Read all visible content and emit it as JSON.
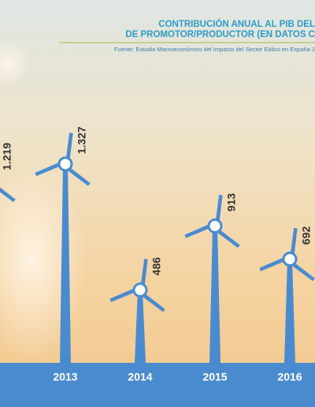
{
  "chart_data": {
    "type": "turbine",
    "title": [
      "CONTRIBUCIÓN ANUAL AL PIB DEL",
      "DE PROMOTOR/PRODUCTOR (EN DATOS C"
    ],
    "subtitle": "Fuente: Estudio Macroeconómico del Impacto del Sector Eólico en España 2",
    "categories": [
      null,
      "2013",
      "2014",
      "2015",
      "2016"
    ],
    "values": [
      1219,
      1327,
      486,
      913,
      692
    ],
    "value_labels": [
      "1.219",
      "1.327",
      "486",
      "913",
      "692"
    ],
    "color": "#4a8bd0"
  }
}
